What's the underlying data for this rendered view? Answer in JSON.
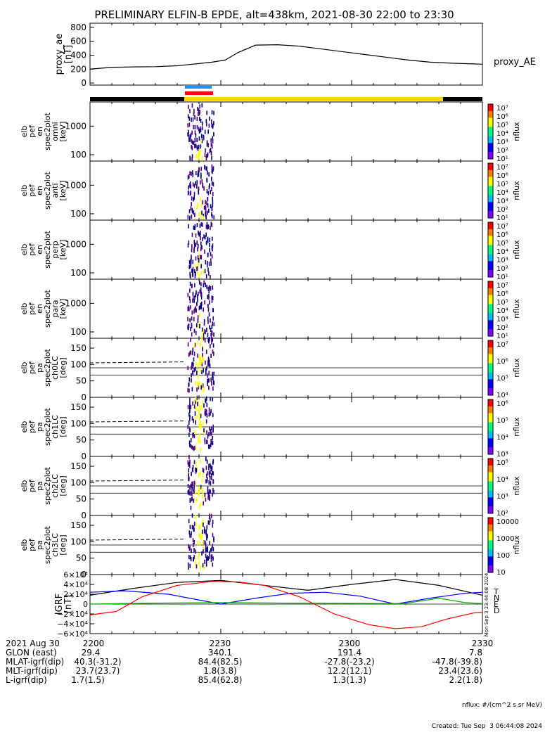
{
  "title": "PRELIMINARY ELFIN-B EPDE, alt=438km, 2021-08-30 22:00 to 23:30",
  "chart_data": [
    {
      "type": "line",
      "id": "proxy_ae",
      "ylabel": [
        "proxy_ae",
        "[nT]"
      ],
      "legend": "proxy_AE",
      "yticks": [
        0,
        200,
        400,
        600,
        800
      ],
      "ylim": [
        -30,
        860
      ],
      "series": [
        {
          "name": "proxy_AE",
          "x": [
            0,
            5,
            10,
            15,
            20,
            25,
            28,
            31,
            34,
            38,
            43,
            48,
            53,
            58,
            63,
            68,
            73,
            78,
            83,
            88,
            90
          ],
          "values": [
            200,
            225,
            232,
            235,
            248,
            280,
            300,
            330,
            440,
            545,
            550,
            530,
            490,
            450,
            410,
            370,
            330,
            300,
            285,
            275,
            270
          ]
        }
      ]
    },
    {
      "type": "heatmap",
      "id": "en_omni",
      "ylabel": [
        "elb",
        "pef",
        "en",
        "spec2plot",
        "omni",
        "[keV]"
      ],
      "yscale": "log",
      "yticks": [
        100,
        1000
      ],
      "ylim": [
        60,
        7000
      ],
      "zlabel": "nflux",
      "zticks": [
        "10⁷",
        "10⁶",
        "10⁵",
        "10⁴",
        "10³",
        "10²",
        "10¹"
      ]
    },
    {
      "type": "heatmap",
      "id": "en_anti",
      "ylabel": [
        "elb",
        "pef",
        "en",
        "spec2plot",
        "anti",
        "[keV]"
      ],
      "yscale": "log",
      "yticks": [
        100,
        1000
      ],
      "ylim": [
        60,
        7000
      ],
      "zlabel": "nflux",
      "zticks": [
        "10⁷",
        "10⁶",
        "10⁵",
        "10⁴",
        "10³",
        "10²",
        "10¹"
      ]
    },
    {
      "type": "heatmap",
      "id": "en_perp",
      "ylabel": [
        "elb",
        "pef",
        "en",
        "spec2plot",
        "perp",
        "[keV]"
      ],
      "yscale": "log",
      "yticks": [
        100,
        1000
      ],
      "ylim": [
        60,
        7000
      ],
      "zlabel": "nflux",
      "zticks": [
        "10⁷",
        "10⁶",
        "10⁵",
        "10⁴",
        "10³",
        "10²",
        "10¹"
      ]
    },
    {
      "type": "heatmap",
      "id": "en_para",
      "ylabel": [
        "elb",
        "pef",
        "en",
        "spec2plot",
        "para",
        "[keV]"
      ],
      "yscale": "log",
      "yticks": [
        100,
        1000
      ],
      "ylim": [
        60,
        7000
      ],
      "zlabel": "nflux",
      "zticks": [
        "10⁷",
        "10⁶",
        "10⁵",
        "10⁴",
        "10³",
        "10²",
        "10¹"
      ]
    },
    {
      "type": "heatmap",
      "id": "pa_ch0",
      "ylabel": [
        "elb",
        "pef",
        "pa",
        "spec2plot",
        "ch0LC",
        "[deg]"
      ],
      "yticks": [
        0,
        50,
        100,
        150
      ],
      "ylim": [
        0,
        180
      ],
      "zlabel": "nflux",
      "zticks": [
        "10⁷",
        "10⁶",
        "10⁵",
        "10⁴"
      ]
    },
    {
      "type": "heatmap",
      "id": "pa_ch1",
      "ylabel": [
        "elb",
        "pef",
        "pa",
        "spec2plot",
        "ch1LC",
        "[deg]"
      ],
      "yticks": [
        0,
        50,
        100,
        150
      ],
      "ylim": [
        0,
        180
      ],
      "zlabel": "nflux",
      "zticks": [
        "10⁶",
        "10⁵",
        "10⁴",
        "10³"
      ]
    },
    {
      "type": "heatmap",
      "id": "pa_ch2",
      "ylabel": [
        "elb",
        "pef",
        "pa",
        "spec2plot",
        "ch2LC",
        "[deg]"
      ],
      "yticks": [
        0,
        50,
        100,
        150
      ],
      "ylim": [
        0,
        180
      ],
      "zlabel": "nflux",
      "zticks": [
        "10⁵",
        "10⁴",
        "10³",
        "10²"
      ]
    },
    {
      "type": "heatmap",
      "id": "pa_ch3",
      "ylabel": [
        "elb",
        "pef",
        "pa",
        "spec2plot",
        "ch3LC",
        "[deg]"
      ],
      "yticks": [
        0,
        50,
        100,
        150
      ],
      "ylim": [
        0,
        180
      ],
      "zlabel": "nflux",
      "zticks": [
        "10000",
        "1000",
        "100",
        "10"
      ]
    },
    {
      "type": "line",
      "id": "igrf",
      "ylabel": [
        "IGRF",
        "[nT]"
      ],
      "yticks": [
        "6×10⁴",
        "4×10⁴",
        "2×10⁴",
        "0",
        "−2×10⁴",
        "−4×10⁴",
        "−6×10⁴"
      ],
      "ylim": [
        -60000,
        60000
      ],
      "series": [
        {
          "name": "T",
          "color": "#000000",
          "x": [
            0,
            10,
            20,
            30,
            40,
            50,
            60,
            70,
            80,
            90
          ],
          "values": [
            18000,
            32000,
            44000,
            48000,
            38000,
            28000,
            40000,
            50000,
            38000,
            18000
          ]
        },
        {
          "name": "N",
          "color": "#0000ff",
          "x": [
            0,
            8,
            18,
            24,
            30,
            38,
            46,
            54,
            62,
            70,
            78,
            86,
            90
          ],
          "values": [
            24000,
            27000,
            20000,
            10000,
            0,
            12000,
            22000,
            24000,
            16000,
            0,
            12000,
            22000,
            24000
          ]
        },
        {
          "name": "E",
          "color": "#00aa00",
          "x": [
            0,
            15,
            30,
            45,
            60,
            72,
            80,
            86,
            90
          ],
          "values": [
            0,
            2000,
            3000,
            2000,
            1500,
            1000,
            12000,
            3000,
            1000
          ]
        },
        {
          "name": "D",
          "color": "#ff0000",
          "x": [
            0,
            6,
            12,
            20,
            28,
            34,
            40,
            48,
            56,
            64,
            70,
            76,
            82,
            88,
            90
          ],
          "values": [
            -22000,
            -15000,
            15000,
            38000,
            46000,
            45000,
            38000,
            15000,
            -20000,
            -42000,
            -50000,
            -46000,
            -30000,
            -18000,
            -17000
          ]
        }
      ]
    }
  ],
  "colorbar_label": "nflux",
  "time_axis": {
    "row_label": "2021 Aug 30",
    "ticks": [
      "2200",
      "2230",
      "2300",
      "2330"
    ]
  },
  "ephemeris": [
    {
      "label": "GLON (east)",
      "values": [
        "29.4",
        "340.1",
        "191.4",
        "7.8"
      ]
    },
    {
      "label": "MLAT-igrf(dip)",
      "values": [
        "40.3(-31.2)",
        "84.4(82.5)",
        "-27.8(-23.2)",
        "-47.8(-39.8)"
      ]
    },
    {
      "label": "MLT-igrf(dip)",
      "values": [
        "23.7(23.7)",
        "1.8(3.8)",
        "12.2(12.1)",
        "23.4(23.6)"
      ]
    },
    {
      "label": "L-igrf(dip)",
      "values": [
        "1.7(1.5)",
        "85.4(62.8)",
        "1.3(1.3)",
        "2.2(1.8)"
      ]
    }
  ],
  "footer": {
    "units": "nflux: #/(cm^2 s sr MeV)",
    "created": "Created: Tue Sep  3 06:44:08 2024"
  },
  "side_stamp": "Mon Sep  3 23:44:08 2024"
}
